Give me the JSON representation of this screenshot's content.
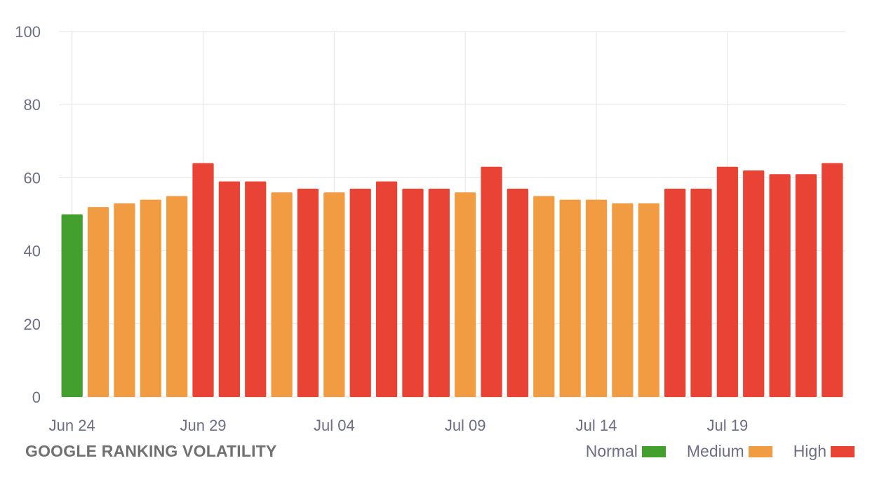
{
  "chart_data": {
    "type": "bar",
    "title": "GOOGLE RANKING VOLATILITY",
    "ylim": [
      0,
      100
    ],
    "y_ticks": [
      0,
      20,
      40,
      60,
      80,
      100
    ],
    "x_tick_labels": [
      "Jun 24",
      "Jun 29",
      "Jul 04",
      "Jul 09",
      "Jul 14",
      "Jul 19"
    ],
    "grid": true,
    "legend_position": "bottom-right",
    "levels": [
      {
        "name": "Normal",
        "color": "#43a02f"
      },
      {
        "name": "Medium",
        "color": "#f19c43"
      },
      {
        "name": "High",
        "color": "#e94335"
      }
    ],
    "categories": [
      "Jun 24",
      "Jun 25",
      "Jun 26",
      "Jun 27",
      "Jun 28",
      "Jun 29",
      "Jun 30",
      "Jul 01",
      "Jul 02",
      "Jul 03",
      "Jul 04",
      "Jul 05",
      "Jul 06",
      "Jul 07",
      "Jul 08",
      "Jul 09",
      "Jul 10",
      "Jul 11",
      "Jul 12",
      "Jul 13",
      "Jul 14",
      "Jul 15",
      "Jul 16",
      "Jul 17",
      "Jul 18",
      "Jul 19",
      "Jul 20",
      "Jul 21",
      "Jul 22",
      "Jul 23"
    ],
    "values": [
      50,
      52,
      53,
      54,
      55,
      64,
      59,
      59,
      56,
      57,
      56,
      57,
      59,
      57,
      57,
      56,
      63,
      57,
      55,
      54,
      54,
      53,
      53,
      57,
      57,
      63,
      62,
      61,
      61,
      64
    ],
    "level_per_bar": [
      "Normal",
      "Medium",
      "Medium",
      "Medium",
      "Medium",
      "High",
      "High",
      "High",
      "Medium",
      "High",
      "Medium",
      "High",
      "High",
      "High",
      "High",
      "Medium",
      "High",
      "High",
      "Medium",
      "Medium",
      "Medium",
      "Medium",
      "Medium",
      "High",
      "High",
      "High",
      "High",
      "High",
      "High",
      "High"
    ]
  }
}
